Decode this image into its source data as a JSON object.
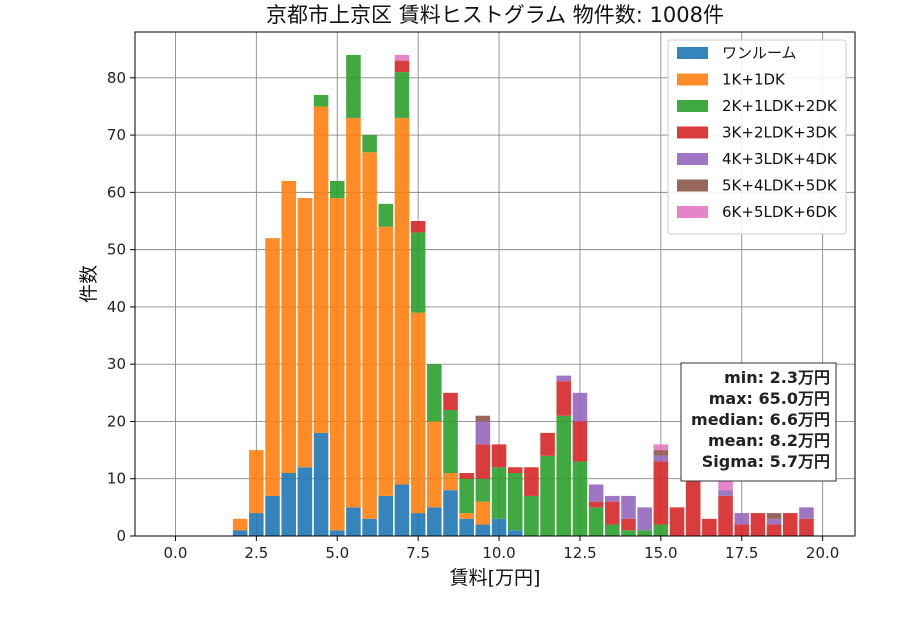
{
  "chart_data": {
    "type": "bar",
    "title": "京都市上京区 賃料ヒストグラム 物件数: 1008件",
    "xlabel": "賃料[万円]",
    "ylabel": "件数",
    "xlim": [
      -1.25,
      21.0
    ],
    "ylim": [
      0,
      88
    ],
    "xticks": [
      "0.0",
      "2.5",
      "5.0",
      "7.5",
      "10.0",
      "12.5",
      "15.0",
      "17.5",
      "20.0"
    ],
    "xtick_values": [
      0,
      2.5,
      5,
      7.5,
      10,
      12.5,
      15,
      17.5,
      20
    ],
    "yticks": [
      "0",
      "10",
      "20",
      "30",
      "40",
      "50",
      "60",
      "70",
      "80"
    ],
    "ytick_values": [
      0,
      10,
      20,
      30,
      40,
      50,
      60,
      70,
      80
    ],
    "grid": true,
    "bin_width": 0.5,
    "legend_position": "top-right",
    "x": [
      2.0,
      2.5,
      3.0,
      3.5,
      4.0,
      4.5,
      5.0,
      5.5,
      6.0,
      6.5,
      7.0,
      7.5,
      8.0,
      8.5,
      9.0,
      9.5,
      10.0,
      10.5,
      11.0,
      11.5,
      12.0,
      12.5,
      13.0,
      13.5,
      14.0,
      14.5,
      15.0,
      15.5,
      16.0,
      16.5,
      17.0,
      17.5,
      18.0,
      18.5,
      19.0,
      19.5
    ],
    "series": [
      {
        "name": "ワンルーム",
        "color": "#1f77b4",
        "values": [
          1,
          4,
          7,
          11,
          12,
          18,
          1,
          5,
          3,
          7,
          9,
          4,
          5,
          8,
          3,
          2,
          3,
          1,
          0,
          0,
          0,
          0,
          0,
          0,
          0,
          0,
          0,
          0,
          0,
          0,
          0,
          0,
          0,
          0,
          0,
          0
        ]
      },
      {
        "name": "1K+1DK",
        "color": "#ff7f0e",
        "values": [
          2,
          11,
          45,
          51,
          47,
          57,
          58,
          68,
          64,
          47,
          64,
          35,
          15,
          3,
          1,
          4,
          0,
          0,
          0,
          0,
          0,
          0,
          0,
          0,
          0,
          0,
          0,
          0,
          0,
          0,
          0,
          0,
          0,
          0,
          0,
          0
        ]
      },
      {
        "name": "2K+1LDK+2DK",
        "color": "#2ca02c",
        "values": [
          0,
          0,
          0,
          0,
          0,
          2,
          3,
          11,
          3,
          4,
          8,
          14,
          10,
          11,
          6,
          4,
          9,
          10,
          7,
          14,
          21,
          13,
          5,
          2,
          1,
          1,
          2,
          0,
          0,
          0,
          0,
          0,
          0,
          0,
          0,
          0
        ]
      },
      {
        "name": "3K+2LDK+3DK",
        "color": "#d62728",
        "values": [
          0,
          0,
          0,
          0,
          0,
          0,
          0,
          0,
          0,
          0,
          2,
          2,
          0,
          3,
          1,
          6,
          4,
          1,
          5,
          4,
          6,
          7,
          1,
          4,
          2,
          0,
          11,
          5,
          10,
          3,
          7,
          2,
          4,
          2,
          4,
          3
        ]
      },
      {
        "name": "4K+3LDK+4DK",
        "color": "#9467bd",
        "values": [
          0,
          0,
          0,
          0,
          0,
          0,
          0,
          0,
          0,
          0,
          0,
          0,
          0,
          0,
          0,
          4,
          0,
          0,
          0,
          0,
          1,
          5,
          3,
          1,
          4,
          4,
          1,
          0,
          0,
          0,
          1,
          2,
          0,
          1,
          0,
          2
        ]
      },
      {
        "name": "5K+4LDK+5DK",
        "color": "#8c564b",
        "values": [
          0,
          0,
          0,
          0,
          0,
          0,
          0,
          0,
          0,
          0,
          0,
          0,
          0,
          0,
          0,
          1,
          0,
          0,
          0,
          0,
          0,
          0,
          0,
          0,
          0,
          0,
          1,
          0,
          0,
          0,
          0,
          0,
          0,
          1,
          0,
          0
        ]
      },
      {
        "name": "6K+5LDK+6DK",
        "color": "#e377c2",
        "values": [
          0,
          0,
          0,
          0,
          0,
          0,
          0,
          0,
          0,
          0,
          1,
          0,
          0,
          0,
          0,
          0,
          0,
          0,
          0,
          0,
          0,
          0,
          0,
          0,
          0,
          0,
          1,
          0,
          0,
          0,
          2,
          0,
          0,
          0,
          0,
          0
        ]
      }
    ],
    "stats_box": [
      "min: 2.3万円",
      "max: 65.0万円",
      "median: 6.6万円",
      "mean: 8.2万円",
      "Sigma: 5.7万円"
    ]
  }
}
